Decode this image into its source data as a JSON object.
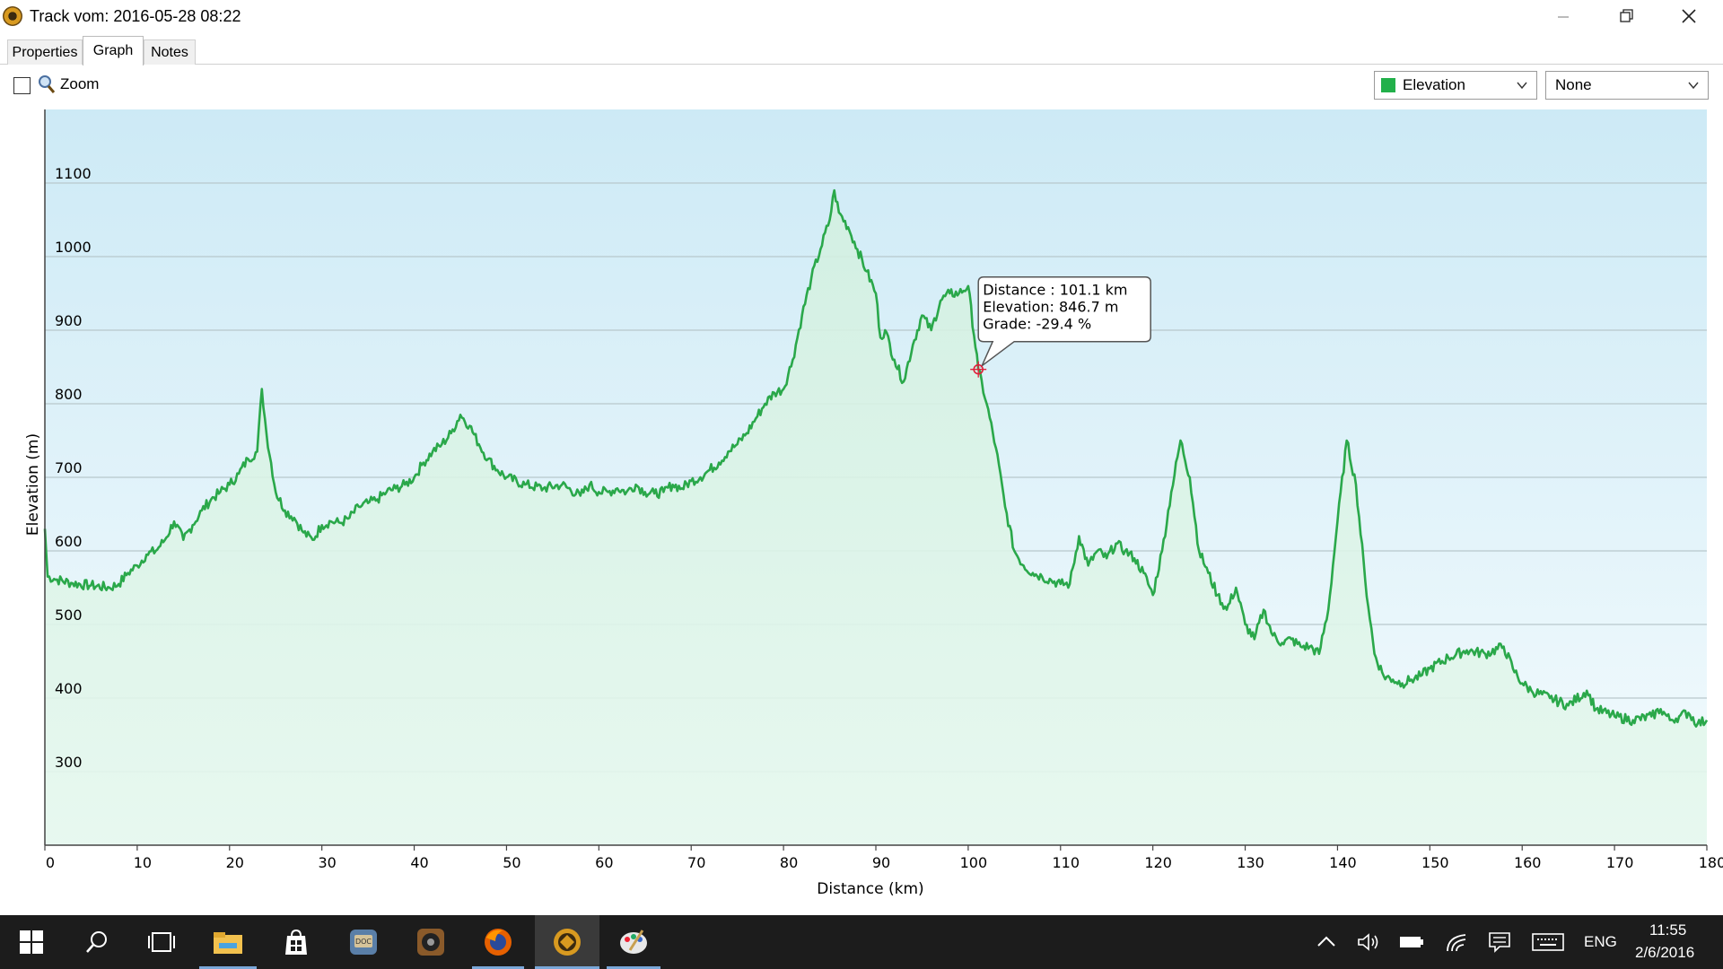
{
  "window": {
    "title": "Track vom: 2016-05-28 08:22",
    "controls": [
      "minimize",
      "restore",
      "close"
    ]
  },
  "tabs": [
    {
      "label": "Properties",
      "active": false
    },
    {
      "label": "Graph",
      "active": true
    },
    {
      "label": "Notes",
      "active": false
    }
  ],
  "toolbar": {
    "zoom_checked": false,
    "zoom_label": "Zoom",
    "series_select": {
      "value": "Elevation",
      "swatch_color": "#22b04a"
    },
    "second_select": {
      "value": "None"
    }
  },
  "tooltip": {
    "line1": "Distance : 101.1 km",
    "line2": "Elevation: 846.7 m",
    "line3": "Grade: -29.4 %"
  },
  "chart_data": {
    "type": "area",
    "xlabel": "Distance  (km)",
    "ylabel": "Elevation (m)",
    "xlim": [
      0,
      180
    ],
    "ylim": [
      200,
      1200
    ],
    "xticks": [
      0,
      10,
      20,
      30,
      40,
      50,
      60,
      70,
      80,
      90,
      100,
      110,
      120,
      130,
      140,
      150,
      160,
      170,
      180
    ],
    "yticks": [
      300,
      400,
      500,
      600,
      700,
      800,
      900,
      1000,
      1100
    ],
    "grid": "horizontal",
    "line_color": "#2aa84a",
    "series": [
      {
        "x": [
          0,
          0.3,
          1,
          3,
          5,
          7,
          8,
          9,
          10,
          11,
          12,
          13,
          14,
          15,
          16,
          17,
          18,
          19,
          20,
          21,
          22,
          23,
          23.5,
          24,
          25,
          26,
          27,
          28,
          29,
          30,
          31,
          32,
          33,
          34,
          35,
          36,
          37,
          38,
          39,
          40,
          41,
          42,
          43,
          44,
          45,
          46,
          47,
          48,
          49,
          50,
          52,
          54,
          56,
          58,
          59,
          60,
          61,
          62,
          63,
          64,
          65,
          66,
          67,
          68,
          69,
          70,
          71,
          72,
          73,
          74,
          75,
          76,
          77,
          78,
          79,
          80,
          81,
          82,
          83,
          84,
          85,
          85.5,
          86,
          87,
          88,
          89,
          90,
          90.5,
          91,
          92,
          93,
          94,
          95,
          96,
          97,
          98,
          99,
          100,
          101.1,
          102,
          103,
          104,
          105,
          106,
          107,
          108,
          109,
          110,
          111,
          112,
          113,
          114,
          115,
          116,
          117,
          118,
          119,
          120,
          121,
          122,
          123,
          124,
          125,
          126,
          127,
          128,
          129,
          130,
          131,
          132,
          133,
          134,
          135,
          136,
          137,
          138,
          139,
          140,
          141,
          142,
          143,
          144,
          145,
          146,
          147,
          148,
          149,
          150,
          152,
          154,
          156,
          158,
          159,
          160,
          161,
          163,
          165,
          167,
          168,
          170,
          172,
          174,
          175,
          176,
          177,
          178,
          179,
          180
        ],
        "y": [
          630,
          565,
          562,
          556,
          553,
          550,
          555,
          570,
          580,
          595,
          600,
          615,
          640,
          615,
          635,
          655,
          670,
          680,
          690,
          705,
          725,
          735,
          820,
          760,
          680,
          655,
          645,
          625,
          615,
          635,
          640,
          638,
          645,
          660,
          665,
          670,
          680,
          685,
          690,
          700,
          720,
          735,
          745,
          760,
          785,
          770,
          745,
          725,
          710,
          700,
          690,
          685,
          690,
          675,
          690,
          680,
          680,
          685,
          680,
          690,
          680,
          678,
          680,
          690,
          685,
          695,
          700,
          710,
          720,
          735,
          745,
          760,
          780,
          800,
          815,
          820,
          860,
          920,
          970,
          1010,
          1050,
          1090,
          1060,
          1040,
          1010,
          980,
          950,
          890,
          900,
          860,
          830,
          880,
          920,
          900,
          940,
          950,
          950,
          960,
          846.7,
          800,
          740,
          660,
          600,
          580,
          570,
          565,
          560,
          555,
          555,
          620,
          580,
          600,
          590,
          610,
          600,
          590,
          570,
          540,
          600,
          680,
          750,
          700,
          600,
          570,
          540,
          520,
          550,
          500,
          480,
          520,
          485,
          475,
          480,
          470,
          470,
          460,
          520,
          640,
          750,
          690,
          560,
          460,
          430,
          425,
          420,
          425,
          430,
          440,
          455,
          465,
          460,
          470,
          440,
          420,
          410,
          400,
          390,
          410,
          385,
          375,
          370,
          375,
          385,
          370,
          375,
          380,
          365,
          370
        ]
      }
    ]
  },
  "taskbar": {
    "apps": [
      "windows-start",
      "search",
      "task-view",
      "file-explorer",
      "store",
      "docs-app",
      "media-app",
      "firefox",
      "gps-track-app",
      "paint-app"
    ],
    "tray_lang": "ENG",
    "time": "11:55",
    "date": "2/6/2016"
  }
}
